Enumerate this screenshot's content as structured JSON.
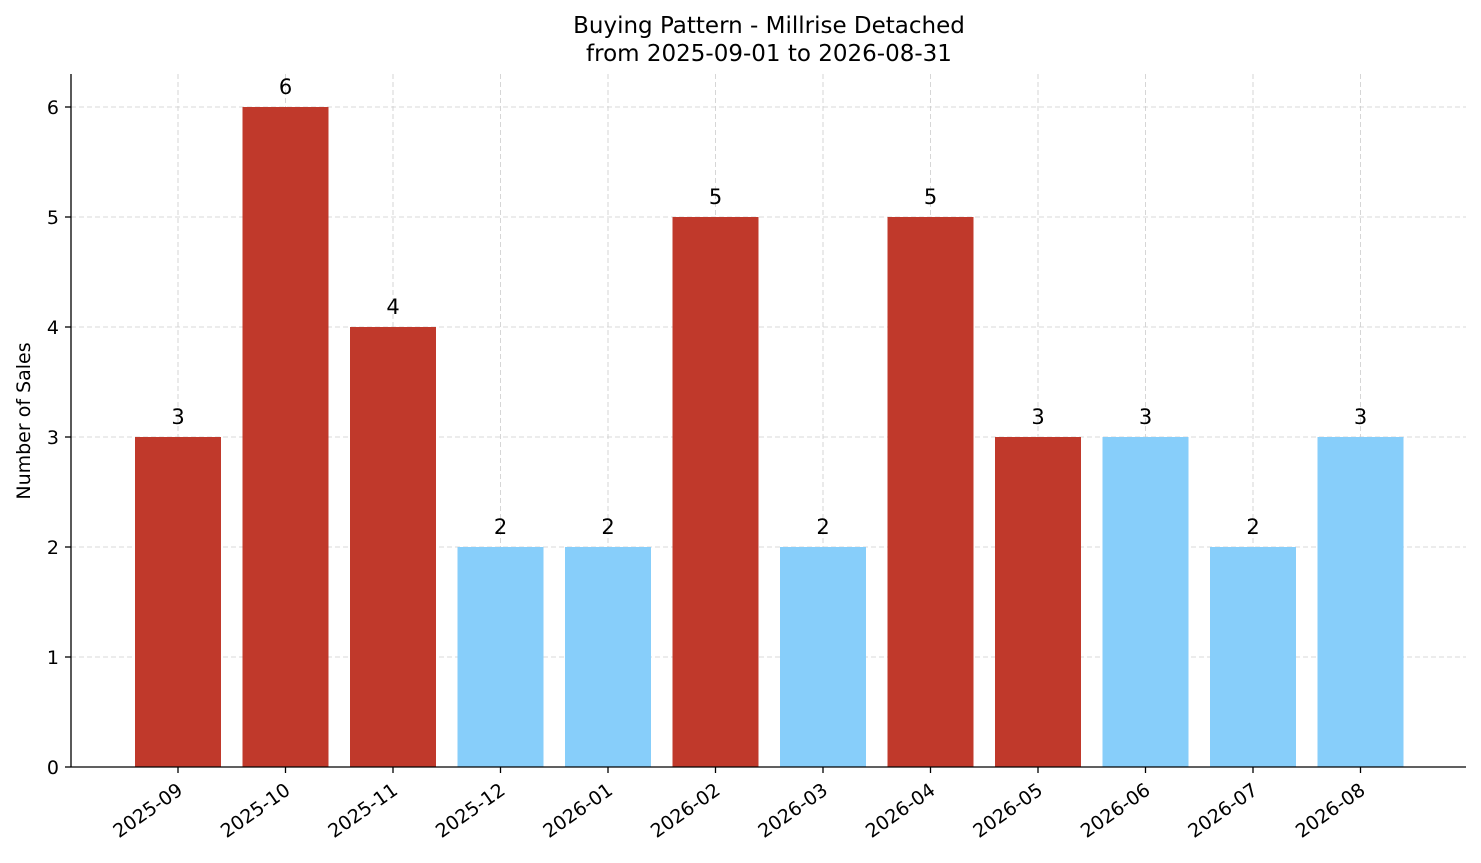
{
  "chart_data": {
    "type": "bar",
    "title": "Buying Pattern - Millrise Detached",
    "subtitle": "from 2025-09-01 to 2026-08-31",
    "xlabel": "",
    "ylabel": "Number of Sales",
    "categories": [
      "2025-09",
      "2025-10",
      "2025-11",
      "2025-12",
      "2026-01",
      "2026-02",
      "2026-03",
      "2026-04",
      "2026-05",
      "2026-06",
      "2026-07",
      "2026-08"
    ],
    "values": [
      3,
      6,
      4,
      2,
      2,
      5,
      2,
      5,
      3,
      3,
      2,
      3
    ],
    "bar_colors": [
      "#c0392b",
      "#c0392b",
      "#c0392b",
      "#87cefa",
      "#87cefa",
      "#c0392b",
      "#87cefa",
      "#c0392b",
      "#c0392b",
      "#87cefa",
      "#87cefa",
      "#87cefa"
    ],
    "ylim": [
      0,
      6.3
    ],
    "yticks": [
      0,
      1,
      2,
      3,
      4,
      5,
      6
    ],
    "grid": true,
    "legend": "none"
  }
}
